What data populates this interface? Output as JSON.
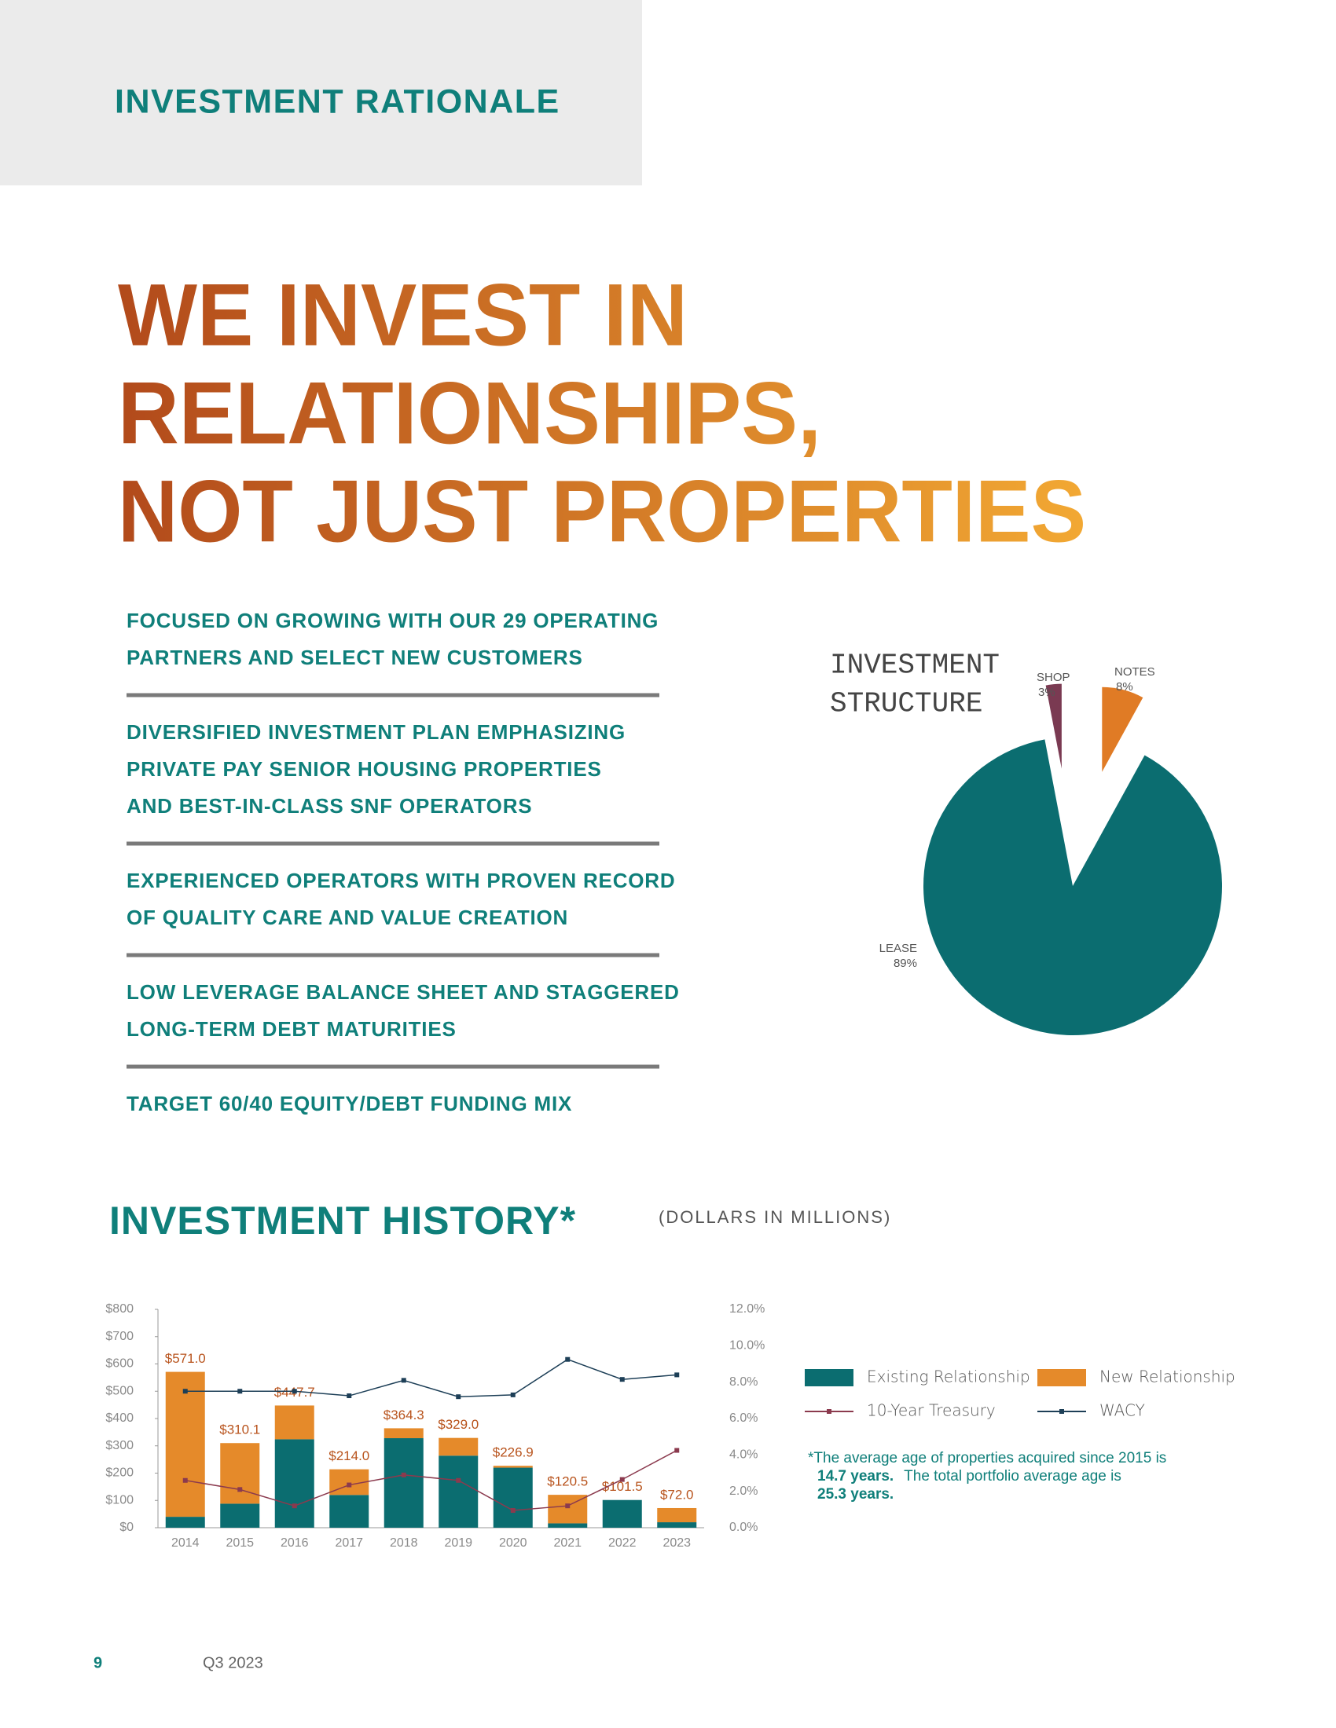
{
  "header": {
    "title": "INVESTMENT RATIONALE"
  },
  "headline": {
    "lines": [
      "WE INVEST IN",
      "RELATIONSHIPS,",
      "NOT JUST PROPERTIES"
    ]
  },
  "bullets": [
    [
      "FOCUSED ON GROWING WITH OUR 29 OPERATING",
      "PARTNERS AND SELECT NEW CUSTOMERS"
    ],
    [
      "DIVERSIFIED INVESTMENT PLAN EMPHASIZING",
      "PRIVATE PAY SENIOR HOUSING PROPERTIES",
      "AND BEST-IN-CLASS SNF OPERATORS"
    ],
    [
      "EXPERIENCED OPERATORS WITH PROVEN RECORD",
      "OF QUALITY CARE AND VALUE CREATION"
    ],
    [
      "LOW LEVERAGE BALANCE SHEET AND STAGGERED",
      "LONG-TERM DEBT MATURITIES"
    ],
    [
      "TARGET 60/40 EQUITY/DEBT FUNDING MIX"
    ]
  ],
  "history": {
    "title": "INVESTMENT HISTORY*",
    "subtitle": "(DOLLARS IN MILLIONS)"
  },
  "footnote": {
    "text1": "*The average age of properties acquired since 2015 is",
    "bold1": "14.7 years.",
    "text2": "The total portfolio average age is",
    "bold2": "25.3 years."
  },
  "footer": {
    "page": "9",
    "period": "Q3 2023"
  },
  "chart_data": [
    {
      "type": "pie",
      "title": [
        "INVESTMENT",
        "STRUCTURE"
      ],
      "categories": [
        "NOTES",
        "LEASE",
        "SHOP"
      ],
      "values": [
        8,
        89,
        3
      ],
      "value_labels": [
        "8%",
        "89%",
        "3%"
      ],
      "colors": [
        "#e07b25",
        "#0b6d70",
        "#7a3a52"
      ],
      "explode": [
        true,
        false,
        true
      ]
    },
    {
      "type": "bar",
      "stacked": true,
      "categories": [
        "2014",
        "2015",
        "2016",
        "2017",
        "2018",
        "2019",
        "2020",
        "2021",
        "2022",
        "2023"
      ],
      "series": [
        {
          "name": "Existing Relationship",
          "color": "#0b6d70",
          "values": [
            40,
            88,
            324,
            120,
            328,
            264,
            220,
            16,
            101.5,
            20
          ]
        },
        {
          "name": "New Relationship",
          "color": "#e58a2a",
          "values": [
            531,
            222.1,
            123.7,
            94,
            36.3,
            65,
            6.9,
            104.5,
            0,
            52
          ]
        },
        {
          "name": "10-Year Treasury",
          "type": "line",
          "axis": "y2",
          "color": "#8b3a4e",
          "values": [
            2.6,
            2.1,
            1.2,
            2.35,
            2.9,
            2.6,
            0.95,
            1.2,
            2.65,
            4.25
          ]
        },
        {
          "name": "WACY",
          "type": "line",
          "axis": "y2",
          "color": "#1d3f57",
          "values": [
            7.5,
            7.5,
            7.5,
            7.25,
            8.1,
            7.2,
            7.3,
            9.25,
            8.15,
            8.4
          ]
        }
      ],
      "totals": [
        571.0,
        310.1,
        447.7,
        214.0,
        364.3,
        329.0,
        226.9,
        120.5,
        101.5,
        72.0
      ],
      "total_labels": [
        "$571.0",
        "$310.1",
        "$447.7",
        "$214.0",
        "$364.3",
        "$329.0",
        "$226.9",
        "$120.5",
        "$101.5",
        "$72.0"
      ],
      "ylim": [
        0,
        800
      ],
      "yticks": [
        {
          "value": 0,
          "label": "$0"
        },
        {
          "value": 100,
          "label": "$100"
        },
        {
          "value": 200,
          "label": "$200"
        },
        {
          "value": 300,
          "label": "$300"
        },
        {
          "value": 400,
          "label": "$400"
        },
        {
          "value": 500,
          "label": "$500"
        },
        {
          "value": 600,
          "label": "$600"
        },
        {
          "value": 700,
          "label": "$700"
        },
        {
          "value": 800,
          "label": "$800"
        }
      ],
      "y2lim": [
        0,
        12
      ],
      "y2ticks": [
        {
          "value": 0,
          "label": "0.0%"
        },
        {
          "value": 2,
          "label": "2.0%"
        },
        {
          "value": 4,
          "label": "4.0%"
        },
        {
          "value": 6,
          "label": "6.0%"
        },
        {
          "value": 8,
          "label": "8.0%"
        },
        {
          "value": 10,
          "label": "10.0%"
        },
        {
          "value": 12,
          "label": "12.0%"
        }
      ]
    }
  ]
}
